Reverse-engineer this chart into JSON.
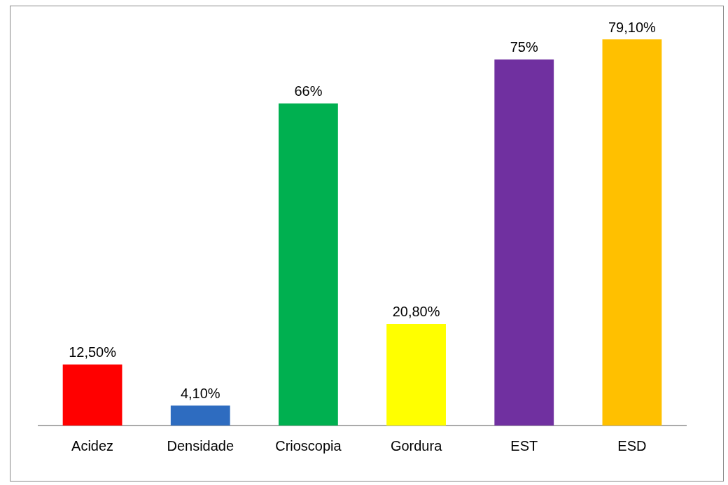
{
  "chart_data": {
    "type": "bar",
    "categories": [
      "Acidez",
      "Densidade",
      "Crioscopia",
      "Gordura",
      "EST",
      "ESD"
    ],
    "values": [
      12.5,
      4.1,
      66,
      20.8,
      75,
      79.1
    ],
    "colors": [
      "#ff0000",
      "#2e6cc0",
      "#00b050",
      "#ffff00",
      "#7030a0",
      "#ffc000"
    ],
    "value_labels": [
      "12,50%",
      "4,10%",
      "66%",
      "20,80%",
      "75%",
      "79,10%"
    ],
    "grid": false,
    "legend": false
  }
}
